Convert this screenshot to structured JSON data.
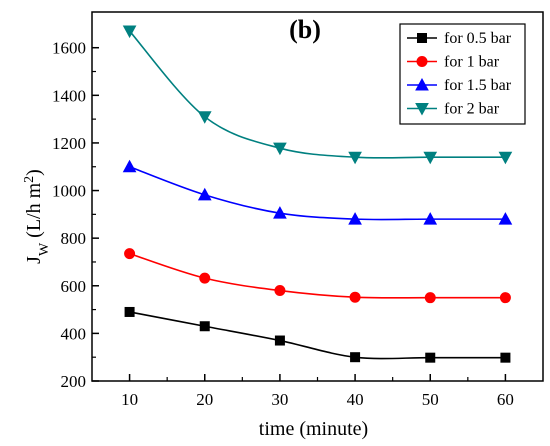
{
  "chart_data": {
    "type": "line",
    "title": "(b)",
    "xlabel": "time (minute)",
    "ylabel_main": "J",
    "ylabel_sub": "W",
    "ylabel_unit": " (L/h m",
    "ylabel_sup": "2",
    "ylabel_close": ")",
    "xlim": [
      5,
      65
    ],
    "ylim": [
      200,
      1750
    ],
    "x": [
      10,
      20,
      30,
      40,
      50,
      60
    ],
    "x_ticks": [
      10,
      20,
      30,
      40,
      50,
      60
    ],
    "y_ticks": [
      200,
      400,
      600,
      800,
      1000,
      1200,
      1400,
      1600
    ],
    "legend_position": "top-right",
    "series": [
      {
        "name": "for 0.5 bar",
        "color": "#000000",
        "marker": "square",
        "values": [
          490,
          430,
          370,
          300,
          298,
          298
        ]
      },
      {
        "name": "for 1 bar",
        "color": "#ff0000",
        "marker": "circle",
        "values": [
          735,
          632,
          580,
          552,
          550,
          550
        ]
      },
      {
        "name": "for 1.5 bar",
        "color": "#0000ff",
        "marker": "triangle-up",
        "values": [
          1100,
          982,
          905,
          880,
          880,
          880
        ]
      },
      {
        "name": "for 2 bar",
        "color": "#008080",
        "marker": "triangle-down",
        "values": [
          1670,
          1310,
          1178,
          1140,
          1140,
          1140
        ]
      }
    ]
  }
}
